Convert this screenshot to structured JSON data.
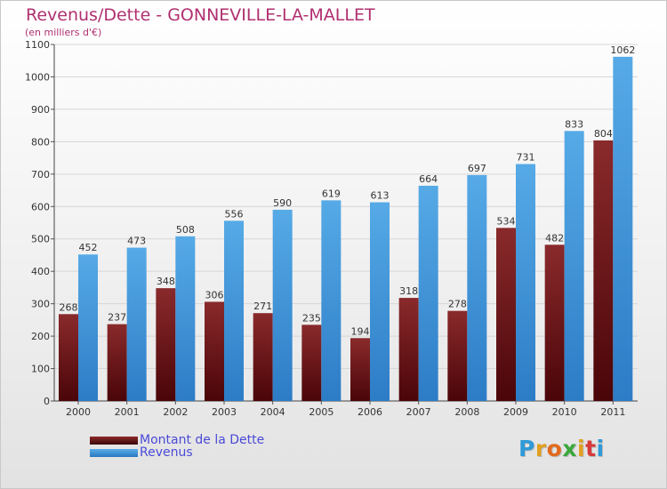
{
  "title": "Revenus/Dette - GONNEVILLE-LA-MALLET",
  "subtitle": "(en milliers d'€)",
  "logo_letters": [
    "P",
    "r",
    "o",
    "x",
    "i",
    "t",
    "i"
  ],
  "logo_colors": [
    "#2f9ad8",
    "#e2a01e",
    "#e26a1e",
    "#3aa83a",
    "#e2a01e",
    "#d83a3a",
    "#2f9ad8"
  ],
  "colors": {
    "dette": "#7a1e22",
    "revenus": "#4a9ee0",
    "title": "#b03070"
  },
  "chart_data": {
    "type": "bar",
    "categories": [
      "2000",
      "2001",
      "2002",
      "2003",
      "2004",
      "2005",
      "2006",
      "2007",
      "2008",
      "2009",
      "2010",
      "2011"
    ],
    "series": [
      {
        "name": "Montant de la Dette",
        "values": [
          268,
          237,
          348,
          306,
          271,
          235,
          194,
          318,
          278,
          534,
          482,
          804
        ]
      },
      {
        "name": "Revenus",
        "values": [
          452,
          473,
          508,
          556,
          590,
          619,
          613,
          664,
          697,
          731,
          833,
          1062
        ]
      }
    ],
    "ylim": [
      0,
      1100
    ],
    "yticks": [
      0,
      100,
      200,
      300,
      400,
      500,
      600,
      700,
      800,
      900,
      1000,
      1100
    ],
    "grid": true,
    "legend": "bottom-left"
  }
}
